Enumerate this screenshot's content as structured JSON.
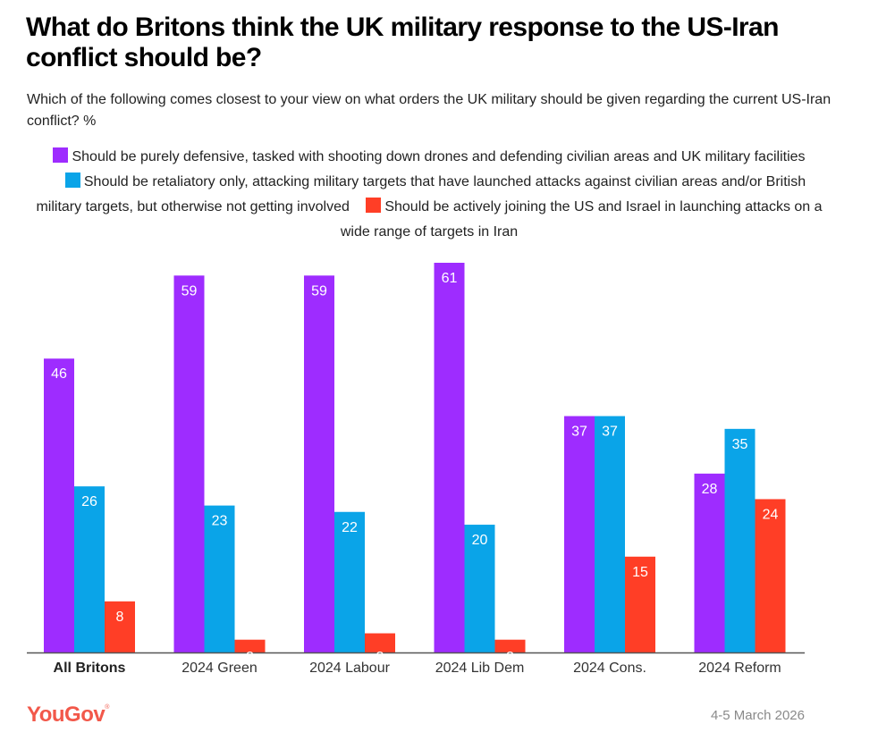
{
  "title": "What do Britons think the UK military response to the US-Iran conflict should be?",
  "subtitle": "Which of the following comes closest to your view on what orders the UK military should be given regarding the current US-Iran conflict? %",
  "legend": [
    {
      "label": "Should be purely defensive, tasked with shooting down drones and defending civilian areas and UK military facilities",
      "color": "#9e2cff"
    },
    {
      "label": "Should be retaliatory only, attacking military targets that have launched attacks against civilian areas and/or British military targets, but otherwise not getting involved",
      "color": "#0aa4e8"
    },
    {
      "label": "Should be actively joining the US and Israel in launching attacks on a wide range of targets in Iran",
      "color": "#ff3e26"
    }
  ],
  "footer": {
    "logo": "YouGov",
    "logo_mark": "®",
    "logo_color": "#f2584a",
    "date": "4-5 March 2026"
  },
  "chart_data": {
    "type": "bar",
    "title": "What do Britons think the UK military response to the US-Iran conflict should be?",
    "subtitle": "Which of the following comes closest to your view on what orders the UK military should be given regarding the current US-Iran conflict? %",
    "xlabel": "",
    "ylabel": "%",
    "ylim": [
      0,
      61
    ],
    "grid": false,
    "legend_position": "top",
    "categories": [
      "All Britons",
      "2024 Green",
      "2024 Labour",
      "2024 Lib Dem",
      "2024 Cons.",
      "2024 Reform"
    ],
    "bold_categories": [
      "All Britons"
    ],
    "series": [
      {
        "name": "Should be purely defensive, tasked with shooting down drones and defending civilian areas and UK military facilities",
        "color": "#9e2cff",
        "values": [
          46,
          59,
          59,
          61,
          37,
          28
        ]
      },
      {
        "name": "Should be retaliatory only, attacking military targets that have launched attacks against civilian areas and/or British military targets, but otherwise not getting involved",
        "color": "#0aa4e8",
        "values": [
          26,
          23,
          22,
          20,
          37,
          35
        ]
      },
      {
        "name": "Should be actively joining the US and Israel in launching attacks on a wide range of targets in Iran",
        "color": "#ff3e26",
        "values": [
          8,
          2,
          3,
          2,
          15,
          24
        ]
      }
    ]
  }
}
